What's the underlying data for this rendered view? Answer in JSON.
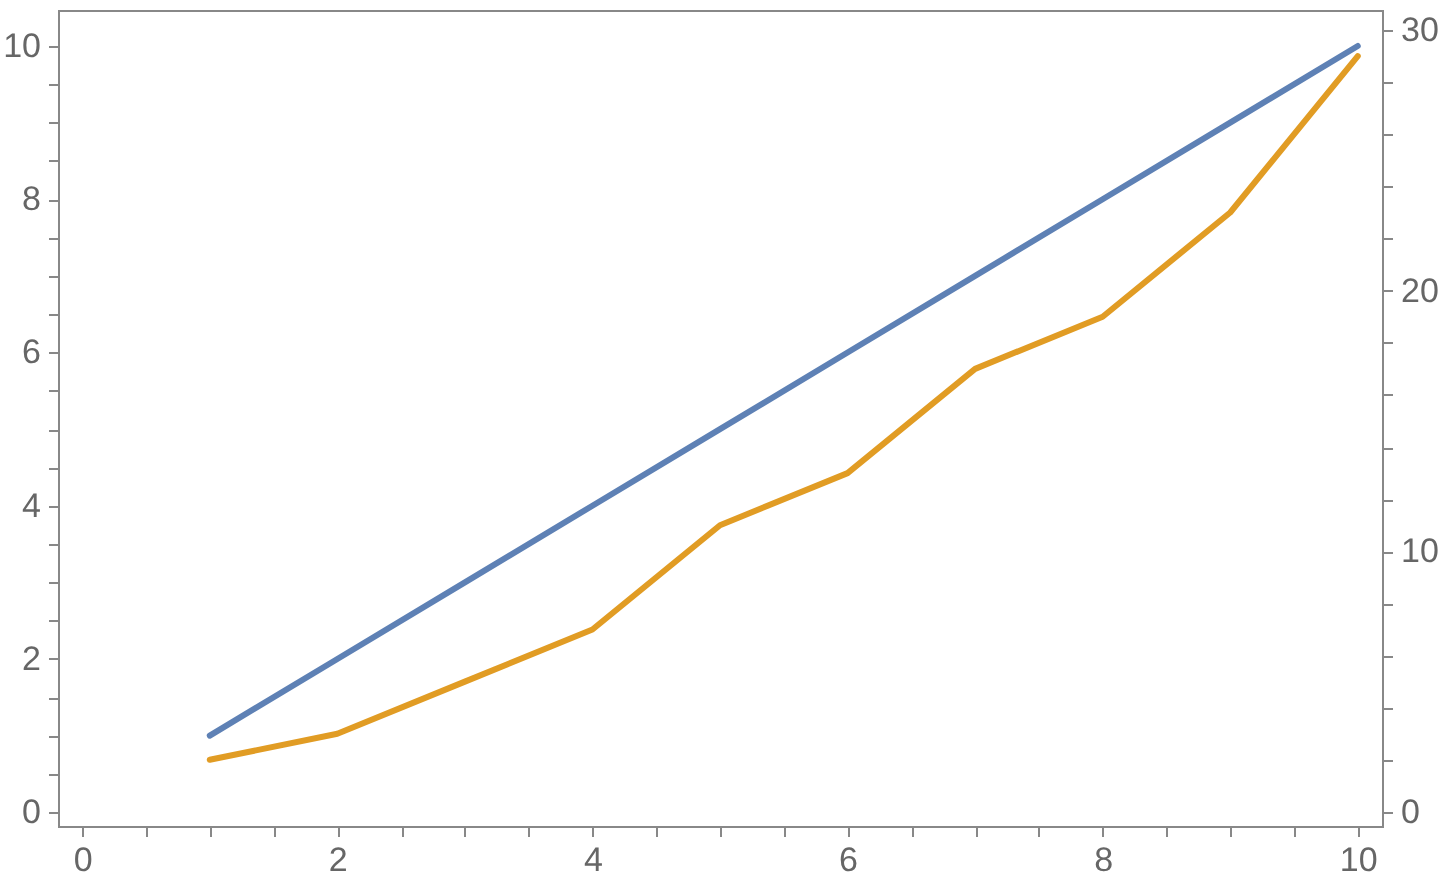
{
  "chart_data": {
    "type": "line",
    "x": [
      1,
      2,
      3,
      4,
      5,
      6,
      7,
      8,
      9,
      10
    ],
    "series": [
      {
        "color": "#5e81b5",
        "values": [
          1,
          2,
          3,
          4,
          5,
          6,
          7,
          8,
          9,
          10
        ]
      },
      {
        "color": "#e19c24",
        "axis": "y2",
        "values": [
          2,
          3,
          5,
          7,
          11,
          13,
          17,
          19,
          23,
          29
        ]
      }
    ],
    "xlim": [
      -0.19,
      10.19
    ],
    "xticks": [
      0,
      {
        "value": 0.5,
        "label": null
      },
      {
        "value": 1,
        "label": null
      },
      {
        "value": 1.5,
        "label": null
      },
      2,
      {
        "value": 2.5,
        "label": null
      },
      {
        "value": 3,
        "label": null
      },
      {
        "value": 3.5,
        "label": null
      },
      4,
      {
        "value": 4.5,
        "label": null
      },
      {
        "value": 5,
        "label": null
      },
      {
        "value": 5.5,
        "label": null
      },
      6,
      {
        "value": 6.5,
        "label": null
      },
      {
        "value": 7,
        "label": null
      },
      {
        "value": 7.5,
        "label": null
      },
      8,
      {
        "value": 8.5,
        "label": null
      },
      {
        "value": 9,
        "label": null
      },
      {
        "value": 9.5,
        "label": null
      },
      10
    ],
    "ylim": [
      -0.18,
      10.47
    ],
    "yticks": [
      0,
      {
        "value": 0.5,
        "label": null
      },
      {
        "value": 1,
        "label": null
      },
      {
        "value": 1.5,
        "label": null
      },
      2,
      {
        "value": 2.5,
        "label": null
      },
      {
        "value": 3,
        "label": null
      },
      {
        "value": 3.5,
        "label": null
      },
      4,
      {
        "value": 4.5,
        "label": null
      },
      {
        "value": 5,
        "label": null
      },
      {
        "value": 5.5,
        "label": null
      },
      6,
      {
        "value": 6.5,
        "label": null
      },
      {
        "value": 7,
        "label": null
      },
      {
        "value": 7.5,
        "label": null
      },
      8,
      {
        "value": 8.5,
        "label": null
      },
      {
        "value": 9,
        "label": null
      },
      {
        "value": 9.5,
        "label": null
      },
      10
    ],
    "y2lim": [
      -0.54,
      30.77
    ],
    "y2ticks": [
      0,
      {
        "value": 2,
        "label": null
      },
      {
        "value": 4,
        "label": null
      },
      {
        "value": 6,
        "label": null
      },
      {
        "value": 8,
        "label": null
      },
      10,
      {
        "value": 12,
        "label": null
      },
      {
        "value": 14,
        "label": null
      },
      {
        "value": 16,
        "label": null
      },
      {
        "value": 18,
        "label": null
      },
      20,
      {
        "value": 22,
        "label": null
      },
      {
        "value": 24,
        "label": null
      },
      {
        "value": 26,
        "label": null
      },
      {
        "value": 28,
        "label": null
      },
      30
    ],
    "grid": false,
    "marker": "none",
    "line_style": "solid"
  }
}
